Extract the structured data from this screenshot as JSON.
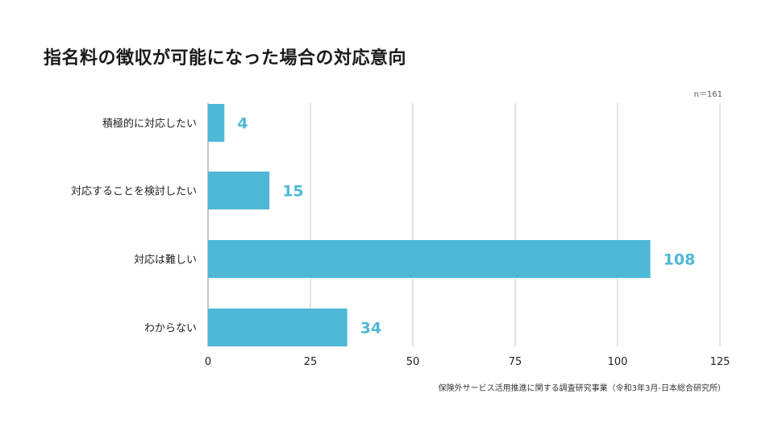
{
  "chart_data": {
    "type": "bar",
    "orientation": "horizontal",
    "title": "指名料の徴収が可能になった場合の対応意向",
    "categories": [
      "積極的に対応したい",
      "対応することを検討したい",
      "対応は難しい",
      "わからない"
    ],
    "values": [
      4,
      15,
      108,
      34
    ],
    "xlim": [
      0,
      125
    ],
    "xticks": [
      0,
      25,
      50,
      75,
      100,
      125
    ],
    "xlabel": "",
    "ylabel": "",
    "grid": true,
    "sample_size": "n＝161",
    "source": "保険外サービス活用推進に関する調査研究事業（令和3年3月-日本総合研究所）"
  },
  "colors": {
    "bar": "#4fb8d6",
    "value_label": "#4fb8d6",
    "grid": "#c8c8c8",
    "axis": "#888888"
  }
}
